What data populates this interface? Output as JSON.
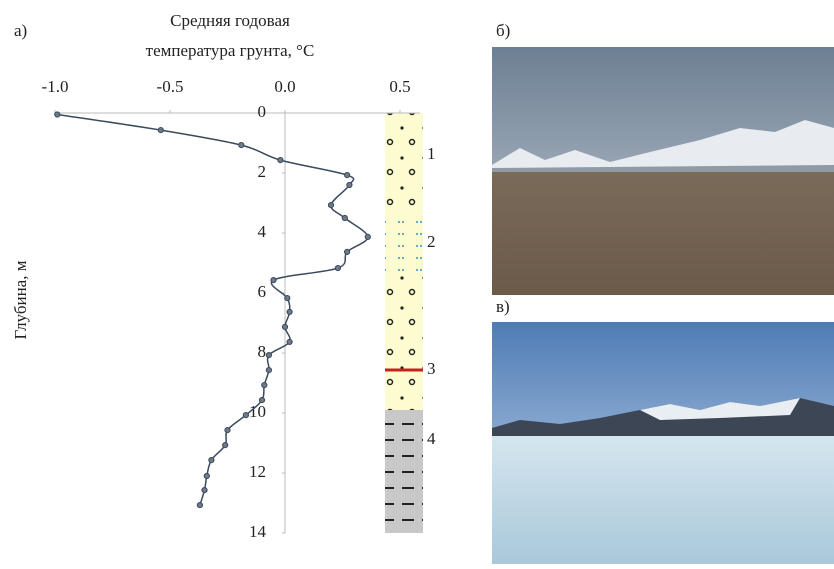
{
  "chart_data": {
    "type": "line",
    "panel_label": "а)",
    "title_lines": [
      "Средняя годовая",
      "температура грунта, °C"
    ],
    "ylabel": "Глубина, м",
    "x": [
      -0.99,
      -0.54,
      -0.19,
      -0.02,
      0.27,
      0.28,
      0.2,
      0.26,
      0.36,
      0.27,
      0.23,
      -0.05,
      0.01,
      0.02,
      0.0,
      0.02,
      -0.07,
      -0.07,
      -0.09,
      -0.1,
      -0.17,
      -0.25,
      -0.26,
      -0.32,
      -0.34,
      -0.35,
      -0.37
    ],
    "y": [
      0.05,
      0.57,
      1.07,
      1.57,
      2.07,
      2.4,
      3.07,
      3.5,
      4.13,
      4.63,
      5.17,
      5.57,
      6.17,
      6.63,
      7.13,
      7.63,
      8.07,
      8.57,
      9.07,
      9.57,
      10.07,
      10.57,
      11.07,
      11.57,
      12.1,
      12.57,
      13.07
    ],
    "color": "#3b4a5e",
    "xlim": [
      -1.0,
      0.5
    ],
    "xticks": [
      {
        "value": -1,
        "label": "-1.0"
      },
      -0.5,
      {
        "value": 0,
        "label": "0.0"
      },
      0.5
    ],
    "ylim": [
      0,
      14
    ],
    "yticks": [
      0,
      2,
      4,
      6,
      8,
      10,
      12,
      14
    ],
    "y_inverted": true,
    "layers": [
      "1",
      "2",
      "3",
      "4"
    ]
  },
  "photos": [
    {
      "label": "б)"
    },
    {
      "label": "в)"
    }
  ]
}
